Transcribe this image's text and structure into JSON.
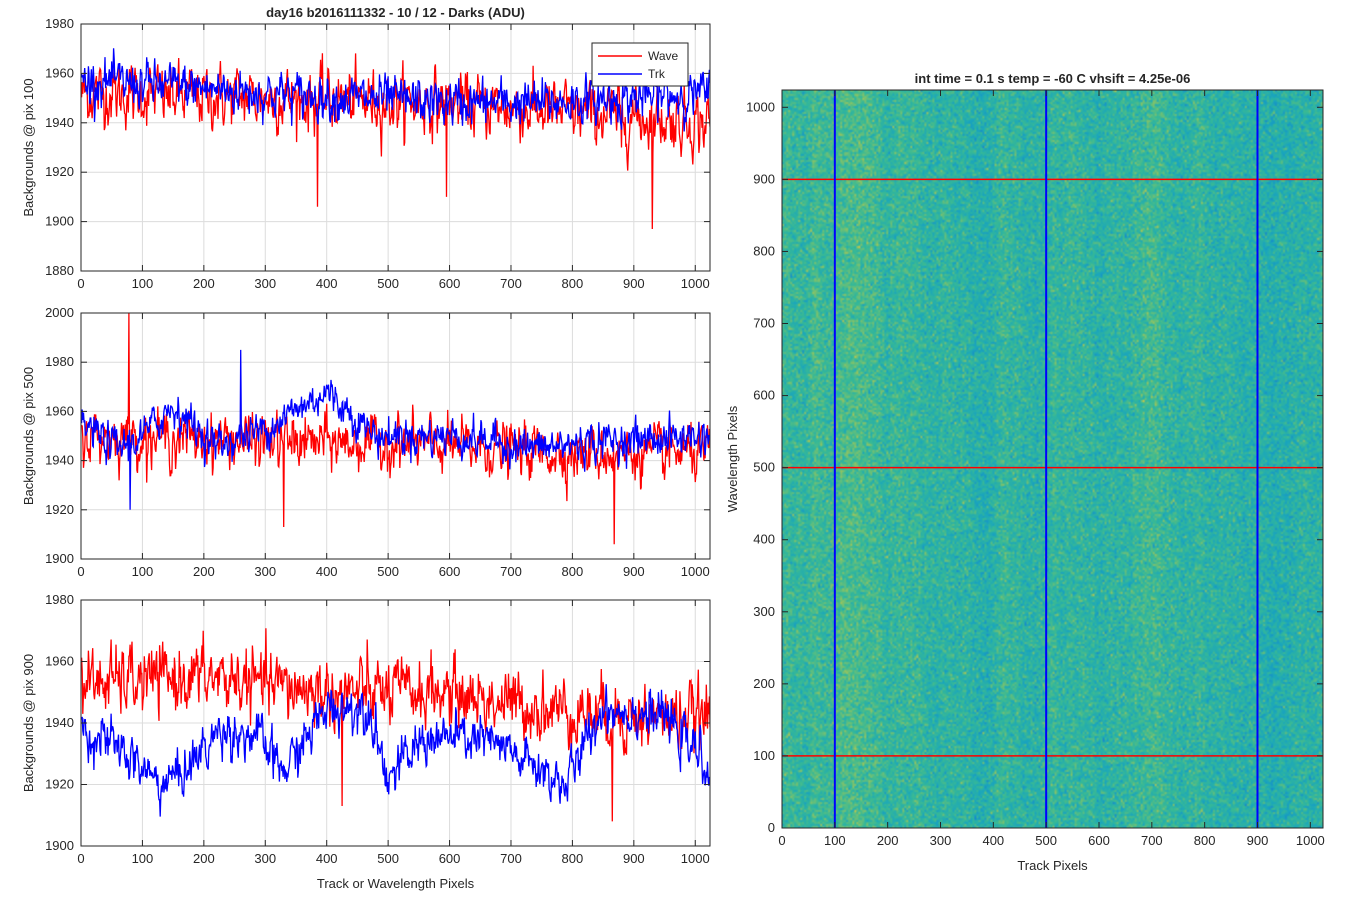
{
  "figure_title": "day16 b2016111332 - 10 / 12 - Darks (ADU)",
  "colors": {
    "wave": "#ff0000",
    "trk": "#0000ff",
    "grid": "#dcdcdc",
    "axis": "#262626"
  },
  "chart_data": [
    {
      "type": "line",
      "title": "day16 b2016111332 - 10 / 12 - Darks (ADU)",
      "xlabel": "",
      "ylabel": "Backgrounds @ pix 100",
      "xlim": [
        0,
        1024
      ],
      "ylim": [
        1880,
        1980
      ],
      "x_ticks": [
        0,
        100,
        200,
        300,
        400,
        500,
        600,
        700,
        800,
        900,
        1000
      ],
      "y_ticks": [
        1880,
        1900,
        1920,
        1940,
        1960,
        1980
      ],
      "grid": true,
      "legend": "top-right",
      "series": [
        {
          "name": "Wave",
          "color": "#ff0000",
          "mean": 1950,
          "noise": 8,
          "trend": [
            [
              0,
              1952
            ],
            [
              300,
              1950
            ],
            [
              600,
              1948
            ],
            [
              750,
              1945
            ],
            [
              1024,
              1940
            ]
          ],
          "spikes": [
            [
              385,
              1906
            ],
            [
              930,
              1897
            ],
            [
              595,
              1910
            ],
            [
              880,
              1930
            ]
          ]
        },
        {
          "name": "Trk",
          "color": "#0000ff",
          "mean": 1953,
          "noise": 6,
          "trend": [
            [
              0,
              1957
            ],
            [
              150,
              1955
            ],
            [
              300,
              1952
            ],
            [
              450,
              1950
            ],
            [
              600,
              1948
            ],
            [
              750,
              1948
            ],
            [
              900,
              1950
            ],
            [
              1024,
              1952
            ]
          ],
          "spikes": []
        }
      ]
    },
    {
      "type": "line",
      "title": "",
      "xlabel": "",
      "ylabel": "Backgrounds @ pix 500",
      "xlim": [
        0,
        1024
      ],
      "ylim": [
        1900,
        2000
      ],
      "x_ticks": [
        0,
        100,
        200,
        300,
        400,
        500,
        600,
        700,
        800,
        900,
        1000
      ],
      "y_ticks": [
        1900,
        1920,
        1940,
        1960,
        1980,
        2000
      ],
      "grid": true,
      "legend": "none",
      "series": [
        {
          "name": "Wave",
          "color": "#ff0000",
          "mean": 1948,
          "noise": 7,
          "trend": [
            [
              0,
              1950
            ],
            [
              300,
              1948
            ],
            [
              600,
              1946
            ],
            [
              800,
              1943
            ],
            [
              1024,
              1943
            ]
          ],
          "spikes": [
            [
              78,
              2000
            ],
            [
              868,
              1906
            ],
            [
              330,
              1913
            ]
          ]
        },
        {
          "name": "Trk",
          "color": "#0000ff",
          "mean": 1952,
          "noise": 5,
          "trend": [
            [
              0,
              1955
            ],
            [
              60,
              1945
            ],
            [
              100,
              1950
            ],
            [
              150,
              1962
            ],
            [
              220,
              1946
            ],
            [
              300,
              1953
            ],
            [
              400,
              1968
            ],
            [
              480,
              1950
            ],
            [
              600,
              1950
            ],
            [
              750,
              1945
            ],
            [
              850,
              1948
            ],
            [
              1024,
              1950
            ]
          ],
          "spikes": [
            [
              80,
              1920
            ],
            [
              260,
              1985
            ]
          ]
        }
      ]
    },
    {
      "type": "line",
      "title": "",
      "xlabel": "Track or Wavelength Pixels",
      "ylabel": "Backgrounds @ pix 900",
      "xlim": [
        0,
        1024
      ],
      "ylim": [
        1900,
        1980
      ],
      "x_ticks": [
        0,
        100,
        200,
        300,
        400,
        500,
        600,
        700,
        800,
        900,
        1000
      ],
      "y_ticks": [
        1900,
        1920,
        1940,
        1960,
        1980
      ],
      "grid": true,
      "legend": "none",
      "series": [
        {
          "name": "Wave",
          "color": "#ff0000",
          "mean": 1953,
          "noise": 7,
          "trend": [
            [
              0,
              1953
            ],
            [
              200,
              1955
            ],
            [
              400,
              1950
            ],
            [
              600,
              1950
            ],
            [
              700,
              1946
            ],
            [
              800,
              1944
            ],
            [
              900,
              1942
            ],
            [
              1024,
              1942
            ]
          ],
          "spikes": [
            [
              865,
              1908
            ],
            [
              425,
              1913
            ]
          ]
        },
        {
          "name": "Trk",
          "color": "#0000ff",
          "mean": 1935,
          "noise": 5,
          "trend": [
            [
              0,
              1938
            ],
            [
              60,
              1932
            ],
            [
              130,
              1920
            ],
            [
              170,
              1925
            ],
            [
              230,
              1938
            ],
            [
              290,
              1935
            ],
            [
              330,
              1924
            ],
            [
              400,
              1945
            ],
            [
              470,
              1945
            ],
            [
              500,
              1922
            ],
            [
              560,
              1935
            ],
            [
              650,
              1935
            ],
            [
              700,
              1930
            ],
            [
              790,
              1920
            ],
            [
              850,
              1945
            ],
            [
              950,
              1942
            ],
            [
              1024,
              1925
            ]
          ],
          "spikes": []
        }
      ]
    },
    {
      "type": "heatmap",
      "title": "int time = 0.1 s   temp = -60 C   vhsift = 4.25e-06",
      "xlabel": "Track Pixels",
      "ylabel": "Wavelength Pixels",
      "xlim": [
        0,
        1024
      ],
      "ylim": [
        0,
        1024
      ],
      "x_ticks": [
        0,
        100,
        200,
        300,
        400,
        500,
        600,
        700,
        800,
        900,
        1000
      ],
      "y_ticks": [
        0,
        100,
        200,
        300,
        400,
        500,
        600,
        700,
        800,
        900,
        1000
      ],
      "colormap": "parula",
      "vertical_marker_lines": [
        100,
        500,
        900
      ],
      "vertical_marker_color": "#0000ff",
      "horizontal_marker_lines": [
        100,
        500,
        900
      ],
      "horizontal_marker_color": "#ff0000"
    }
  ]
}
